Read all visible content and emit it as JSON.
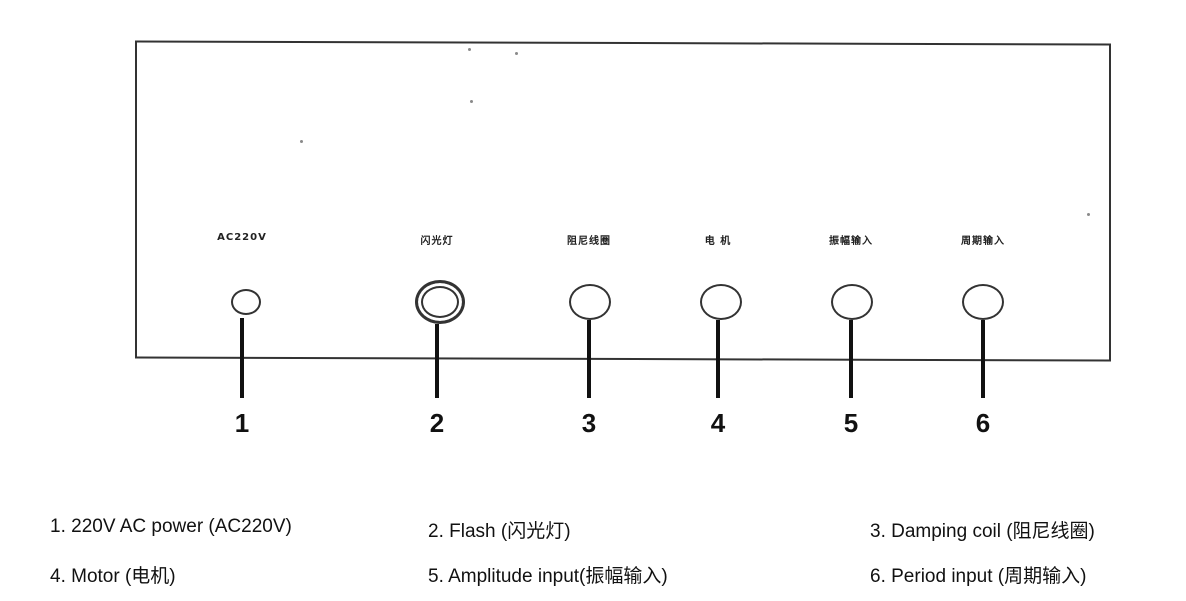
{
  "panel": {
    "ports": [
      {
        "label": "AC220V",
        "number": "1"
      },
      {
        "label": "闪光灯",
        "number": "2"
      },
      {
        "label": "阻尼线圈",
        "number": "3"
      },
      {
        "label": "电 机",
        "number": "4"
      },
      {
        "label": "振幅输入",
        "number": "5"
      },
      {
        "label": "周期输入",
        "number": "6"
      }
    ]
  },
  "legend": {
    "items": [
      "1. 220V AC power (AC220V)",
      "2. Flash (闪光灯)",
      "3. Damping coil (阻尼线圈)",
      "4. Motor (电机)",
      "5. Amplitude input(振幅输入)",
      "6. Period input (周期输入)"
    ]
  },
  "colors": {
    "line": "#333333",
    "text": "#111111",
    "background": "#ffffff"
  }
}
